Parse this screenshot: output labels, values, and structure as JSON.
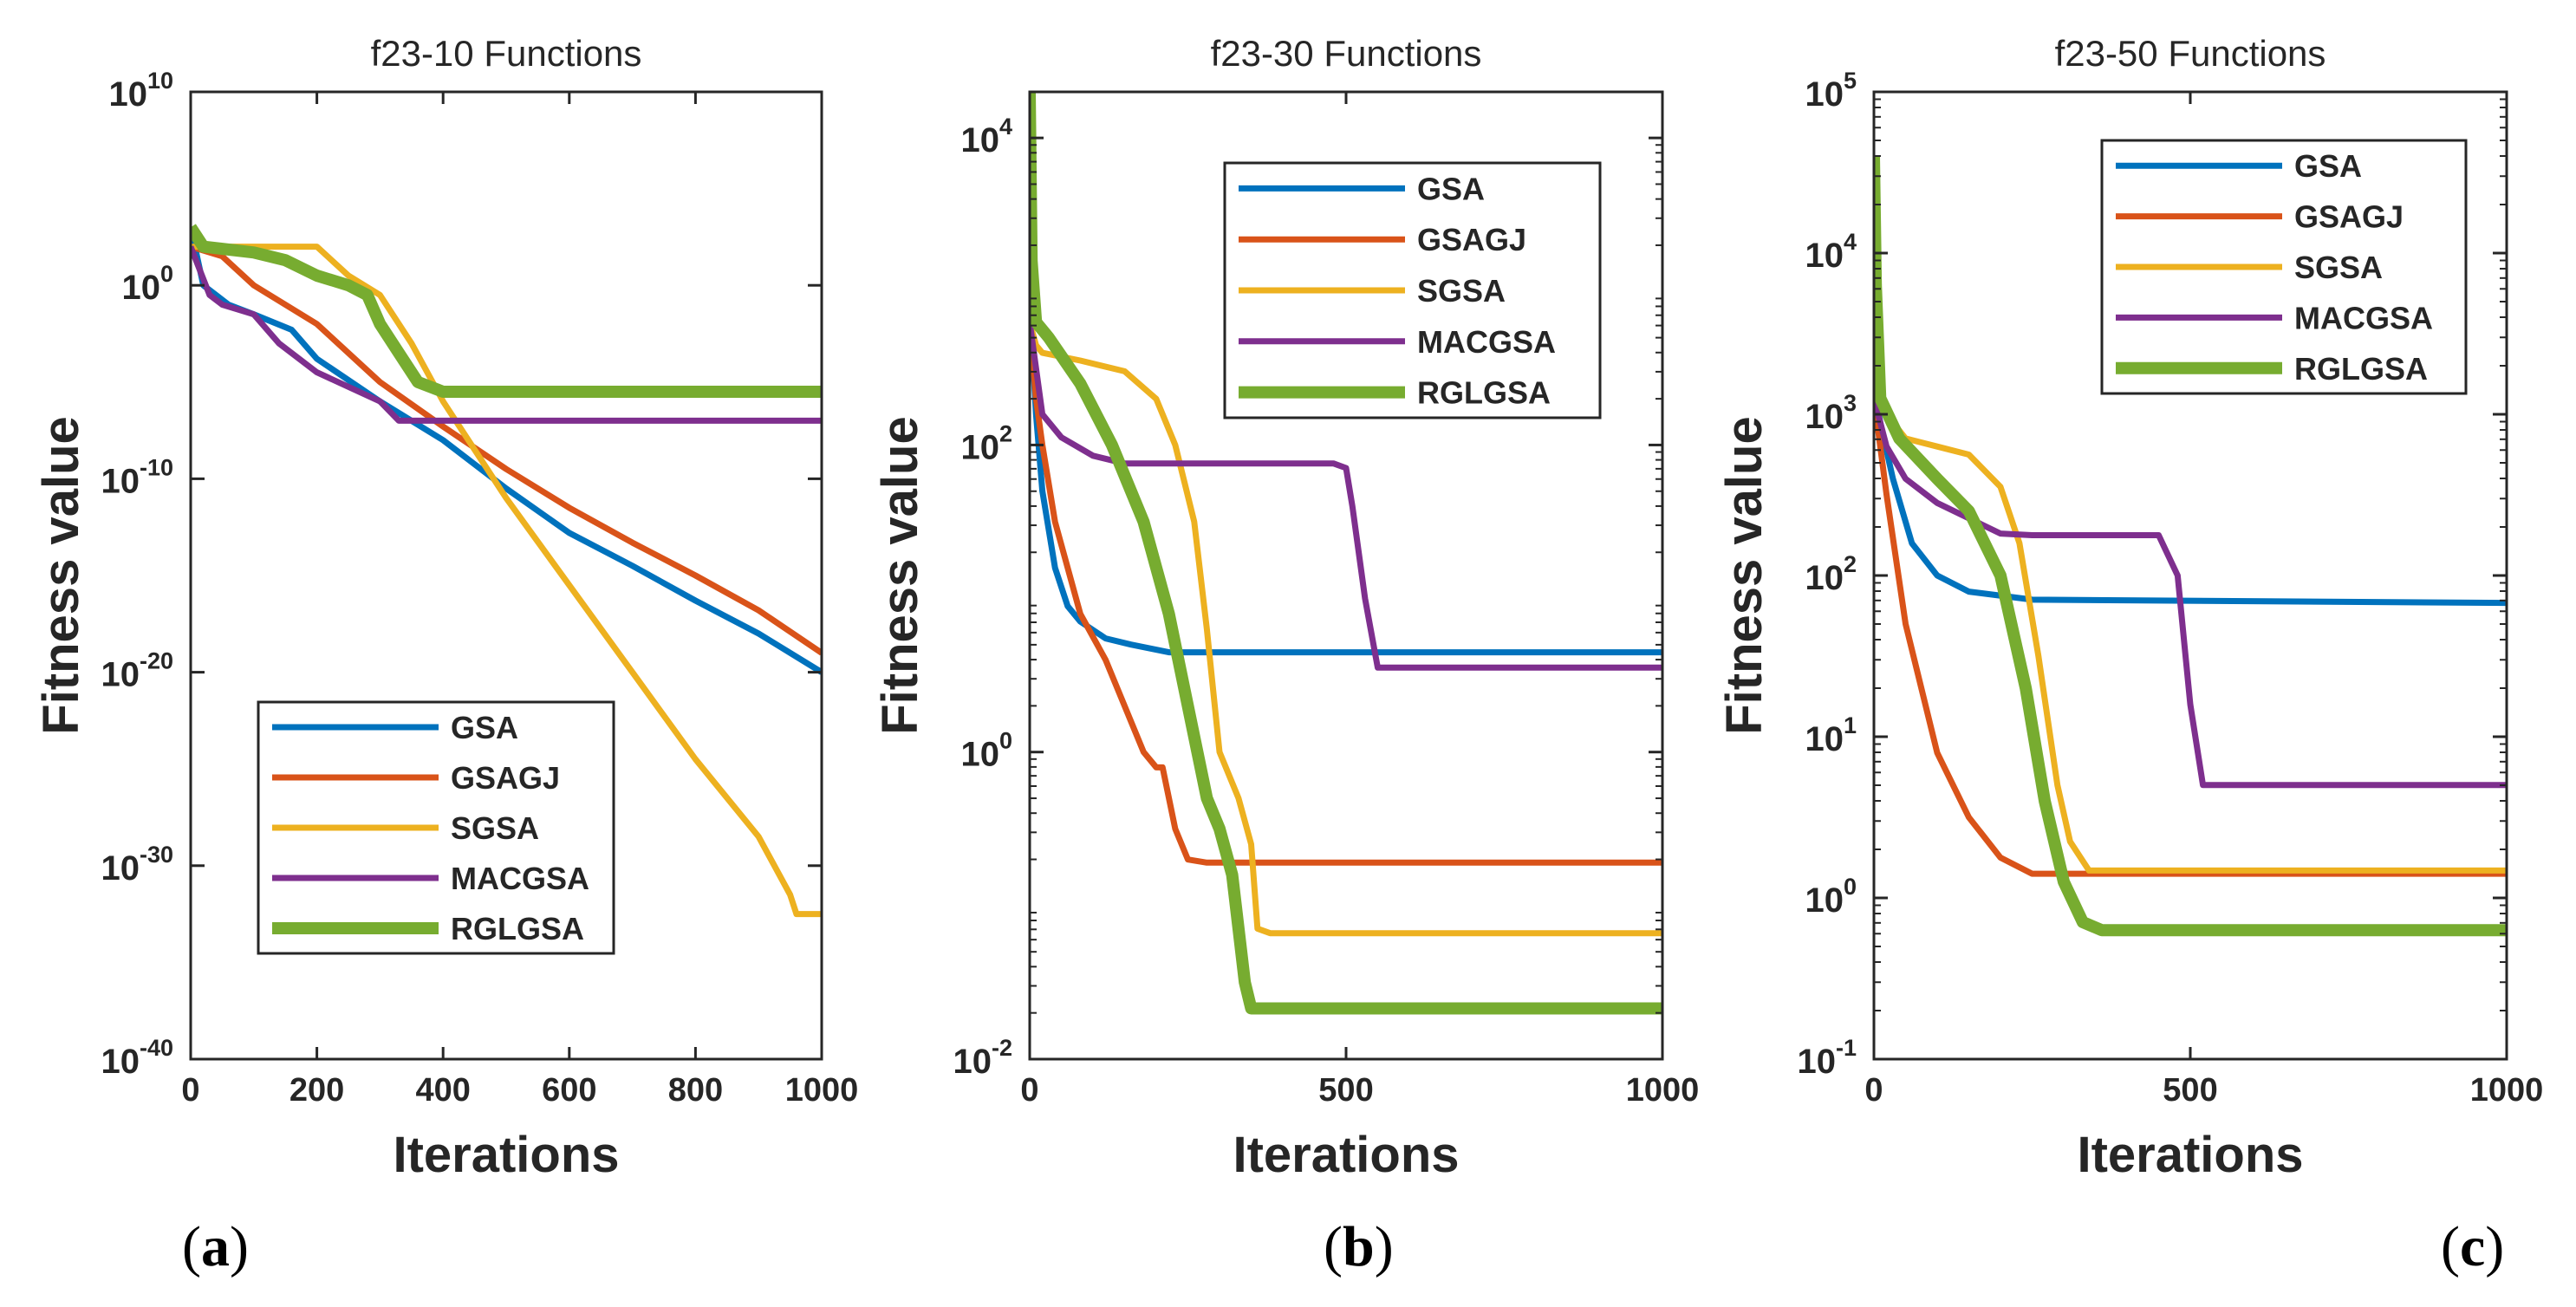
{
  "colors": {
    "GSA": "#0072BD",
    "GSAGJ": "#D95319",
    "SGSA": "#EDB120",
    "MACGSA": "#7E2F8E",
    "RGLGSA": "#77AC30",
    "axis": "#262626"
  },
  "chart_data": [
    {
      "type": "line",
      "title": "f23-10 Functions",
      "xlabel": "Iterations",
      "ylabel": "Fitness value",
      "panel_label": "(a)",
      "xlim": [
        0,
        1000
      ],
      "ylim_log10": [
        -40,
        10
      ],
      "x_ticks": [
        0,
        200,
        400,
        600,
        800,
        1000
      ],
      "y_tick_exponents": [
        -40,
        -30,
        -20,
        -10,
        0,
        10
      ],
      "legend_position": "bottom-center",
      "series": [
        {
          "name": "GSA",
          "points": [
            [
              0,
              3
            ],
            [
              20,
              0
            ],
            [
              60,
              -1
            ],
            [
              100,
              -1.5
            ],
            [
              160,
              -2.3
            ],
            [
              200,
              -3.8
            ],
            [
              300,
              -6
            ],
            [
              400,
              -8
            ],
            [
              500,
              -10.5
            ],
            [
              600,
              -12.8
            ],
            [
              700,
              -14.5
            ],
            [
              800,
              -16.3
            ],
            [
              900,
              -18
            ],
            [
              1000,
              -20
            ]
          ]
        },
        {
          "name": "GSAGJ",
          "points": [
            [
              0,
              2
            ],
            [
              50,
              1.5
            ],
            [
              100,
              0
            ],
            [
              200,
              -2
            ],
            [
              300,
              -5
            ],
            [
              400,
              -7.3
            ],
            [
              500,
              -9.5
            ],
            [
              600,
              -11.5
            ],
            [
              700,
              -13.3
            ],
            [
              800,
              -15
            ],
            [
              900,
              -16.8
            ],
            [
              1000,
              -19
            ]
          ]
        },
        {
          "name": "SGSA",
          "points": [
            [
              0,
              2
            ],
            [
              50,
              2
            ],
            [
              150,
              2
            ],
            [
              200,
              2
            ],
            [
              250,
              0.5
            ],
            [
              300,
              -0.5
            ],
            [
              350,
              -3
            ],
            [
              400,
              -6
            ],
            [
              500,
              -11
            ],
            [
              600,
              -15.5
            ],
            [
              700,
              -20
            ],
            [
              800,
              -24.5
            ],
            [
              900,
              -28.5
            ],
            [
              950,
              -31.5
            ],
            [
              960,
              -32.5
            ],
            [
              1000,
              -32.5
            ]
          ]
        },
        {
          "name": "MACGSA",
          "points": [
            [
              0,
              2
            ],
            [
              30,
              -0.5
            ],
            [
              50,
              -1
            ],
            [
              100,
              -1.5
            ],
            [
              140,
              -3
            ],
            [
              200,
              -4.5
            ],
            [
              300,
              -6
            ],
            [
              330,
              -7
            ],
            [
              360,
              -7
            ],
            [
              1000,
              -7
            ]
          ]
        },
        {
          "name": "RGLGSA",
          "points": [
            [
              0,
              3
            ],
            [
              20,
              2
            ],
            [
              100,
              1.7
            ],
            [
              150,
              1.3
            ],
            [
              200,
              0.5
            ],
            [
              250,
              0
            ],
            [
              280,
              -0.5
            ],
            [
              300,
              -2
            ],
            [
              330,
              -3.5
            ],
            [
              360,
              -5
            ],
            [
              400,
              -5.5
            ],
            [
              1000,
              -5.5
            ]
          ]
        }
      ]
    },
    {
      "type": "line",
      "title": "f23-30 Functions",
      "xlabel": "Iterations",
      "ylabel": "Fitness value",
      "panel_label": "(b)",
      "xlim": [
        0,
        1000
      ],
      "ylim_log10": [
        -2,
        4.3
      ],
      "x_ticks": [
        0,
        500,
        1000
      ],
      "y_tick_exponents": [
        -2,
        0,
        2,
        4
      ],
      "legend_position": "top-right",
      "series": [
        {
          "name": "GSA",
          "points": [
            [
              0,
              2.9
            ],
            [
              10,
              2.2
            ],
            [
              20,
              1.7
            ],
            [
              40,
              1.2
            ],
            [
              60,
              0.95
            ],
            [
              80,
              0.85
            ],
            [
              120,
              0.74
            ],
            [
              160,
              0.7
            ],
            [
              220,
              0.65
            ],
            [
              1000,
              0.65
            ]
          ]
        },
        {
          "name": "GSAGJ",
          "points": [
            [
              0,
              2.8
            ],
            [
              10,
              2.3
            ],
            [
              20,
              2.0
            ],
            [
              40,
              1.5
            ],
            [
              80,
              0.9
            ],
            [
              120,
              0.6
            ],
            [
              150,
              0.3
            ],
            [
              180,
              0
            ],
            [
              200,
              -0.1
            ],
            [
              210,
              -0.1
            ],
            [
              230,
              -0.5
            ],
            [
              250,
              -0.7
            ],
            [
              280,
              -0.72
            ],
            [
              1000,
              -0.72
            ]
          ]
        },
        {
          "name": "SGSA",
          "points": [
            [
              0,
              2.8
            ],
            [
              10,
              2.65
            ],
            [
              20,
              2.6
            ],
            [
              80,
              2.55
            ],
            [
              150,
              2.48
            ],
            [
              200,
              2.3
            ],
            [
              230,
              2.0
            ],
            [
              260,
              1.5
            ],
            [
              280,
              0.8
            ],
            [
              300,
              0
            ],
            [
              330,
              -0.3
            ],
            [
              350,
              -0.6
            ],
            [
              360,
              -1.15
            ],
            [
              380,
              -1.18
            ],
            [
              1000,
              -1.18
            ]
          ]
        },
        {
          "name": "MACGSA",
          "points": [
            [
              0,
              2.8
            ],
            [
              20,
              2.2
            ],
            [
              50,
              2.05
            ],
            [
              100,
              1.93
            ],
            [
              150,
              1.88
            ],
            [
              200,
              1.88
            ],
            [
              480,
              1.88
            ],
            [
              500,
              1.85
            ],
            [
              510,
              1.6
            ],
            [
              520,
              1.3
            ],
            [
              530,
              1.0
            ],
            [
              550,
              0.55
            ],
            [
              1000,
              0.55
            ]
          ]
        },
        {
          "name": "RGLGSA",
          "points": [
            [
              0,
              4.3
            ],
            [
              3,
              3.2
            ],
            [
              10,
              2.8
            ],
            [
              30,
              2.7
            ],
            [
              80,
              2.4
            ],
            [
              130,
              2.0
            ],
            [
              180,
              1.5
            ],
            [
              220,
              0.9
            ],
            [
              250,
              0.3
            ],
            [
              280,
              -0.3
            ],
            [
              300,
              -0.5
            ],
            [
              320,
              -0.8
            ],
            [
              340,
              -1.5
            ],
            [
              350,
              -1.67
            ],
            [
              1000,
              -1.67
            ]
          ]
        }
      ]
    },
    {
      "type": "line",
      "title": "f23-50 Functions",
      "xlabel": "Iterations",
      "ylabel": "Fitness value",
      "panel_label": "(c)",
      "xlim": [
        0,
        1000
      ],
      "ylim_log10": [
        -1,
        5
      ],
      "x_ticks": [
        0,
        500,
        1000
      ],
      "y_tick_exponents": [
        -1,
        0,
        1,
        2,
        3,
        4,
        5
      ],
      "legend_position": "top-right",
      "series": [
        {
          "name": "GSA",
          "points": [
            [
              0,
              3.15
            ],
            [
              10,
              2.95
            ],
            [
              30,
              2.6
            ],
            [
              60,
              2.2
            ],
            [
              100,
              2.0
            ],
            [
              150,
              1.9
            ],
            [
              250,
              1.85
            ],
            [
              1000,
              1.83
            ]
          ]
        },
        {
          "name": "GSAGJ",
          "points": [
            [
              0,
              3.1
            ],
            [
              20,
              2.5
            ],
            [
              50,
              1.7
            ],
            [
              100,
              0.9
            ],
            [
              150,
              0.5
            ],
            [
              200,
              0.25
            ],
            [
              250,
              0.15
            ],
            [
              280,
              0.15
            ],
            [
              1000,
              0.15
            ]
          ]
        },
        {
          "name": "SGSA",
          "points": [
            [
              0,
              3.15
            ],
            [
              20,
              3.0
            ],
            [
              50,
              2.85
            ],
            [
              100,
              2.8
            ],
            [
              150,
              2.75
            ],
            [
              200,
              2.55
            ],
            [
              230,
              2.2
            ],
            [
              260,
              1.5
            ],
            [
              290,
              0.7
            ],
            [
              310,
              0.35
            ],
            [
              340,
              0.17
            ],
            [
              400,
              0.17
            ],
            [
              1000,
              0.17
            ]
          ]
        },
        {
          "name": "MACGSA",
          "points": [
            [
              0,
              3.1
            ],
            [
              20,
              2.8
            ],
            [
              50,
              2.6
            ],
            [
              100,
              2.45
            ],
            [
              200,
              2.26
            ],
            [
              250,
              2.25
            ],
            [
              450,
              2.25
            ],
            [
              480,
              2.0
            ],
            [
              500,
              1.2
            ],
            [
              520,
              0.7
            ],
            [
              1000,
              0.7
            ]
          ]
        },
        {
          "name": "RGLGSA",
          "points": [
            [
              0,
              4.6
            ],
            [
              3,
              3.8
            ],
            [
              10,
              3.1
            ],
            [
              40,
              2.85
            ],
            [
              100,
              2.6
            ],
            [
              150,
              2.4
            ],
            [
              200,
              2.0
            ],
            [
              240,
              1.3
            ],
            [
              270,
              0.6
            ],
            [
              300,
              0.1
            ],
            [
              330,
              -0.15
            ],
            [
              360,
              -0.2
            ],
            [
              1000,
              -0.2
            ]
          ]
        }
      ]
    }
  ]
}
